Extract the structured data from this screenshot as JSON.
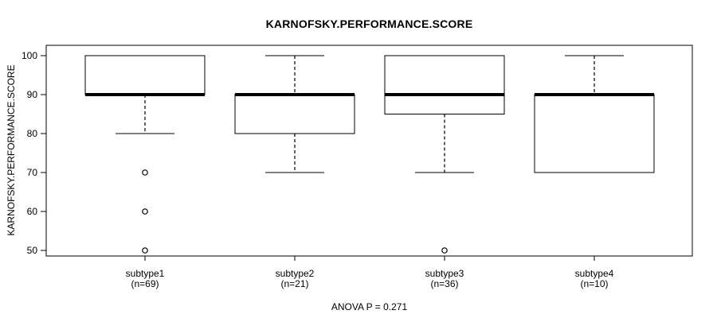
{
  "chart_data": {
    "type": "boxplot",
    "title": "KARNOFSKY.PERFORMANCE.SCORE",
    "ylabel": "KARNOFSKY.PERFORMANCE.SCORE",
    "footnote": "ANOVA P = 0.271",
    "ylim": [
      48,
      102
    ],
    "yticks": [
      50,
      60,
      70,
      80,
      90,
      100
    ],
    "grid": false,
    "legend": "none",
    "categories": [
      "subtype1",
      "subtype2",
      "subtype3",
      "subtype4"
    ],
    "category_sublabels": [
      "(n=69)",
      "(n=21)",
      "(n=36)",
      "(n=10)"
    ],
    "series": [
      {
        "name": "subtype1",
        "n": 69,
        "whisker_low": 80,
        "q1": 90,
        "median": 90,
        "q3": 100,
        "whisker_high": 100,
        "outliers": [
          70,
          60,
          50
        ]
      },
      {
        "name": "subtype2",
        "n": 21,
        "whisker_low": 70,
        "q1": 80,
        "median": 90,
        "q3": 90,
        "whisker_high": 100,
        "outliers": []
      },
      {
        "name": "subtype3",
        "n": 36,
        "whisker_low": 70,
        "q1": 85,
        "median": 90,
        "q3": 100,
        "whisker_high": 100,
        "outliers": [
          50
        ]
      },
      {
        "name": "subtype4",
        "n": 10,
        "whisker_low": 70,
        "q1": 70,
        "median": 90,
        "q3": 90,
        "whisker_high": 100,
        "outliers": []
      }
    ],
    "colors": {
      "stroke": "#000000",
      "box_fill": "#ffffff",
      "background": "#ffffff"
    }
  }
}
